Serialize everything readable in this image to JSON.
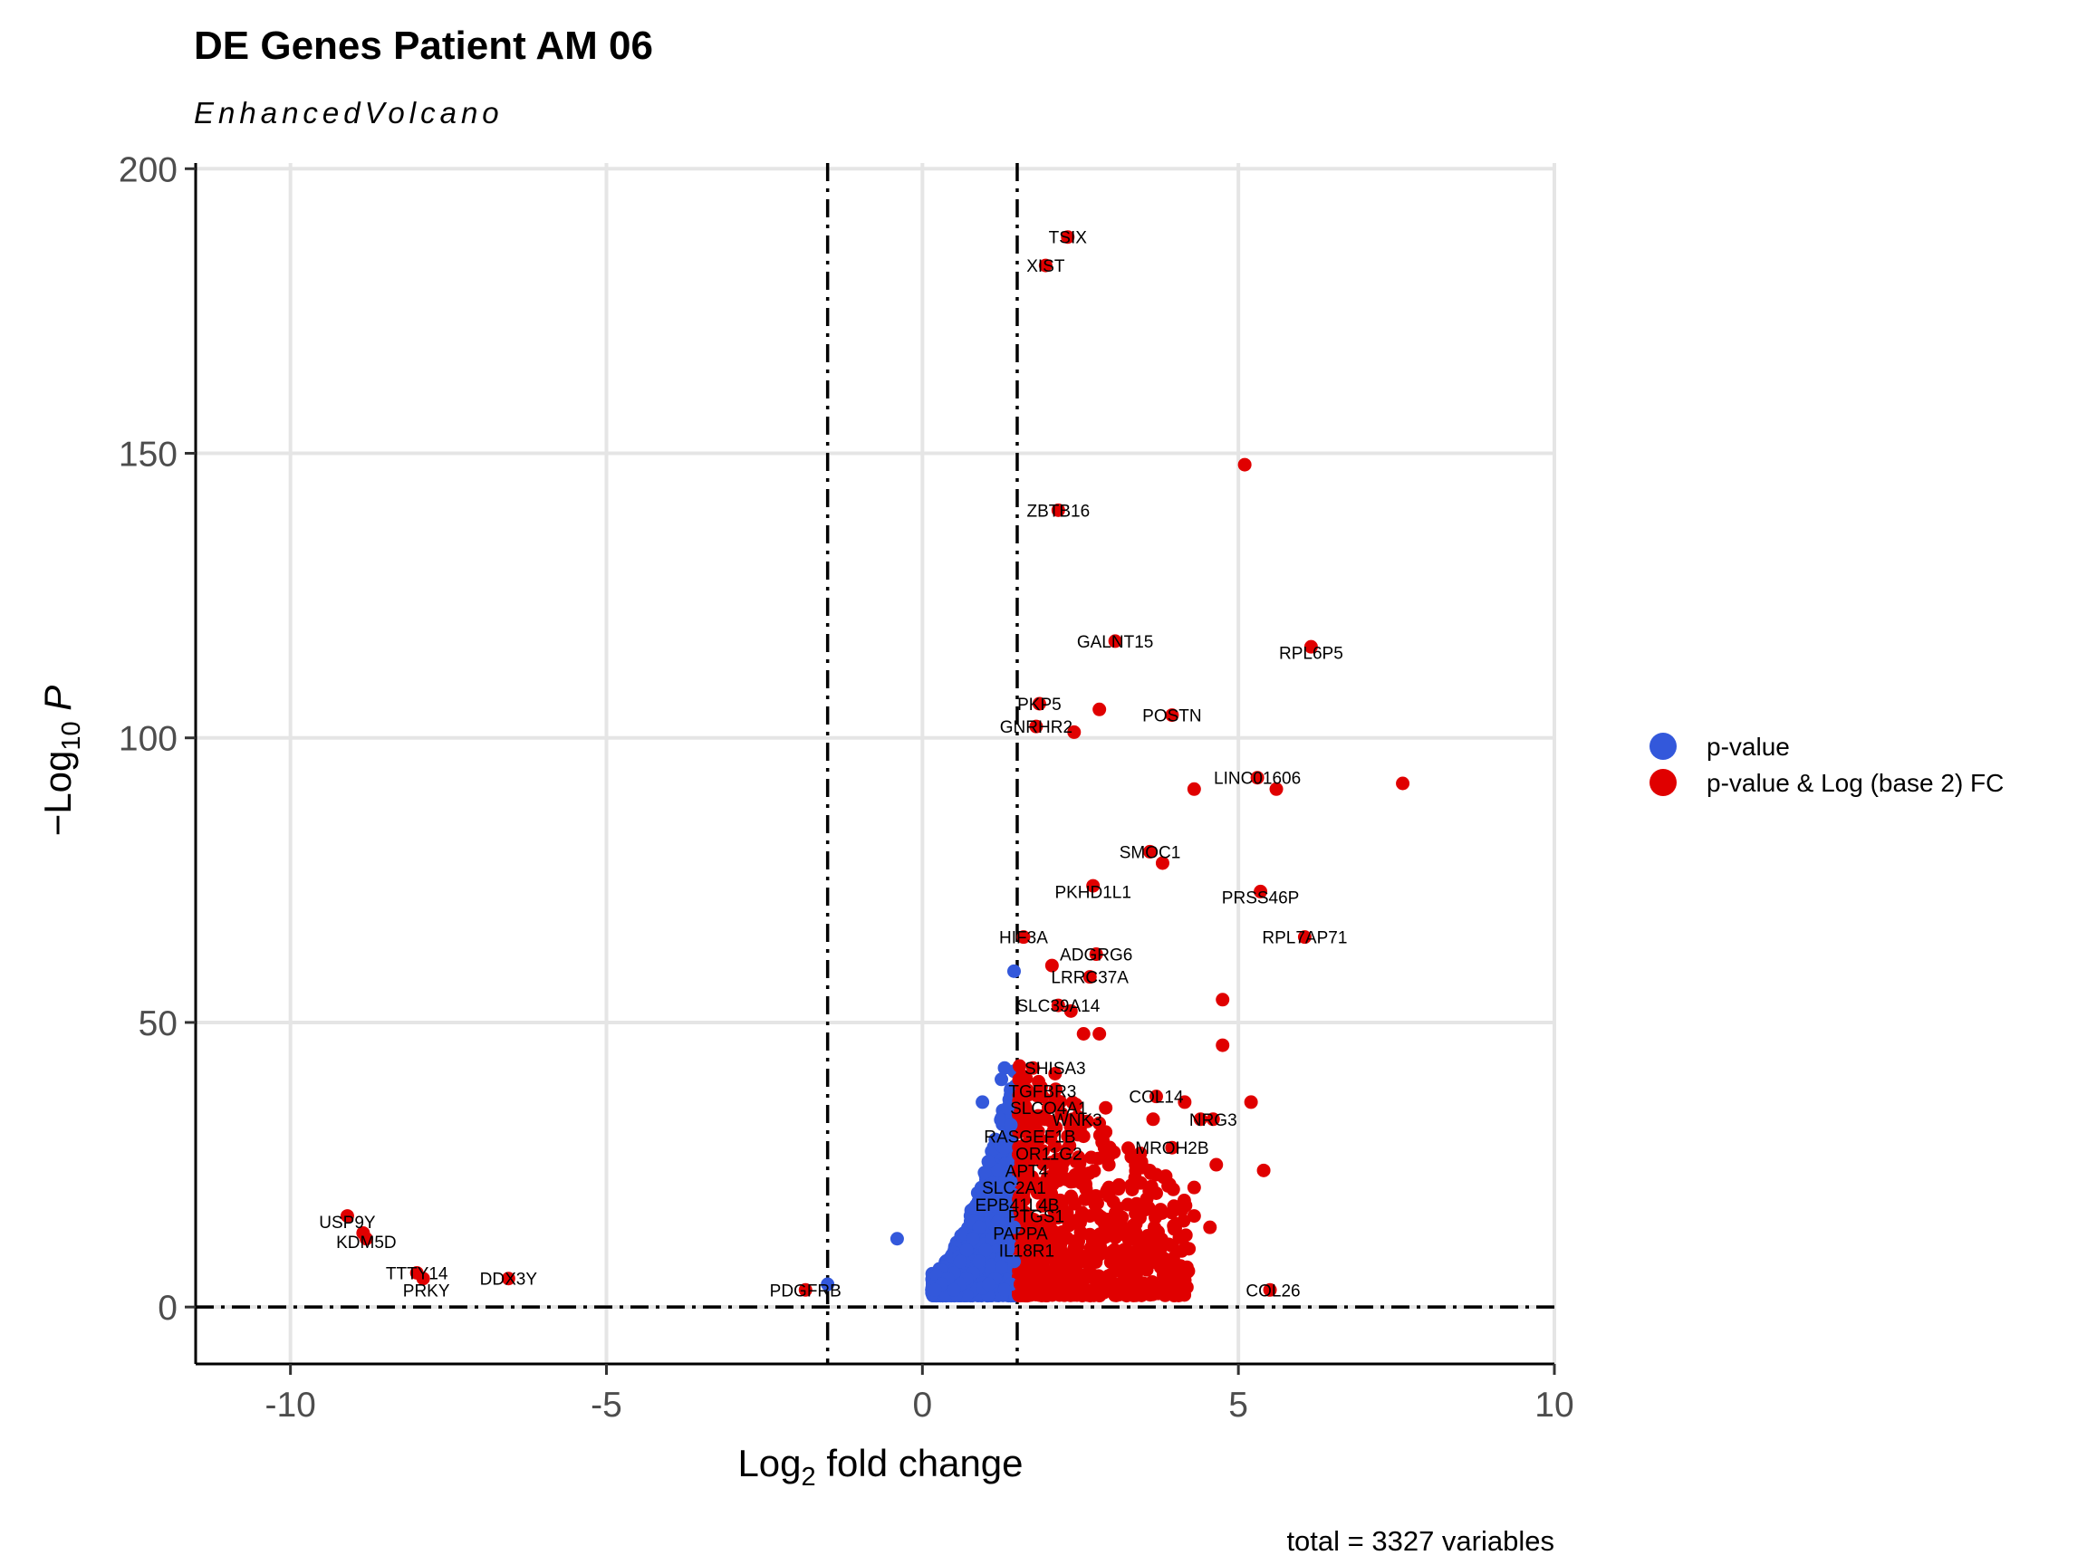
{
  "chart_data": {
    "type": "scatter",
    "title": "DE Genes Patient AM 06",
    "subtitle": "EnhancedVolcano",
    "xlabel": {
      "prefix": "Log",
      "sub": "2",
      "suffix": " fold change"
    },
    "ylabel": {
      "prefix": "−Log",
      "sub": "10",
      "suffix": " P"
    },
    "caption": "total = 3327 variables",
    "xlim": [
      -11.5,
      10
    ],
    "ylim": [
      -10,
      201
    ],
    "x_ticks": [
      -10,
      -5,
      0,
      5,
      10
    ],
    "x_tick_labels": [
      "-10",
      "-5",
      "0",
      "5",
      "10"
    ],
    "y_ticks": [
      0,
      50,
      100,
      150,
      200
    ],
    "y_tick_labels": [
      "0",
      "50",
      "100",
      "150",
      "200"
    ],
    "grid": true,
    "fc_cutoff": 1.5,
    "p_cutoff_line": 0,
    "legend_position": "right",
    "legend": [
      {
        "label": "p-value",
        "color": "#3358db"
      },
      {
        "label": "p-value & Log (base 2) FC",
        "color": "#e00000"
      }
    ],
    "series": [
      {
        "name": "p-value",
        "color": "#3358db",
        "points": [
          [
            1.45,
            59
          ],
          [
            1.25,
            40
          ],
          [
            1.3,
            42
          ],
          [
            1.35,
            35
          ],
          [
            0.95,
            36
          ],
          [
            1.4,
            32
          ],
          [
            1.3,
            28
          ],
          [
            1.2,
            24
          ],
          [
            1.1,
            20
          ],
          [
            1.0,
            17
          ],
          [
            0.9,
            14
          ],
          [
            0.8,
            12
          ],
          [
            0.7,
            10
          ],
          [
            0.6,
            8
          ],
          [
            0.5,
            6
          ],
          [
            0.4,
            5
          ],
          [
            0.3,
            4
          ],
          [
            0.2,
            3
          ],
          [
            1.4,
            22
          ],
          [
            1.3,
            18
          ],
          [
            1.2,
            15
          ],
          [
            1.1,
            12
          ],
          [
            1.0,
            10
          ],
          [
            0.9,
            8
          ],
          [
            0.8,
            6
          ],
          [
            0.7,
            5
          ],
          [
            0.6,
            4
          ],
          [
            0.5,
            3
          ],
          [
            1.45,
            14
          ],
          [
            1.45,
            8
          ],
          [
            1.35,
            10
          ],
          [
            1.25,
            7
          ],
          [
            1.15,
            5
          ],
          [
            1.05,
            4
          ],
          [
            1.4,
            4
          ],
          [
            1.3,
            3
          ],
          [
            -0.4,
            12
          ],
          [
            -1.5,
            4
          ]
        ]
      },
      {
        "name": "p-value & Log (base 2) FC",
        "color": "#e00000",
        "points": [
          [
            2.3,
            188
          ],
          [
            1.95,
            183
          ],
          [
            5.1,
            148
          ],
          [
            2.15,
            140
          ],
          [
            3.05,
            117
          ],
          [
            6.15,
            116
          ],
          [
            1.85,
            106
          ],
          [
            2.8,
            105
          ],
          [
            3.95,
            104
          ],
          [
            1.8,
            102
          ],
          [
            2.4,
            101
          ],
          [
            5.3,
            93
          ],
          [
            4.3,
            91
          ],
          [
            5.6,
            91
          ],
          [
            7.6,
            92
          ],
          [
            3.6,
            80
          ],
          [
            3.8,
            78
          ],
          [
            2.7,
            74
          ],
          [
            5.35,
            73
          ],
          [
            6.05,
            65
          ],
          [
            1.6,
            65
          ],
          [
            2.75,
            62
          ],
          [
            2.05,
            60
          ],
          [
            2.65,
            58
          ],
          [
            4.75,
            54
          ],
          [
            2.15,
            53
          ],
          [
            2.35,
            52
          ],
          [
            2.55,
            48
          ],
          [
            2.8,
            48
          ],
          [
            4.75,
            46
          ],
          [
            1.75,
            42
          ],
          [
            2.1,
            41
          ],
          [
            1.9,
            37
          ],
          [
            3.7,
            37
          ],
          [
            4.15,
            36
          ],
          [
            5.2,
            36
          ],
          [
            2.2,
            34
          ],
          [
            2.9,
            35
          ],
          [
            3.65,
            33
          ],
          [
            4.4,
            33
          ],
          [
            4.6,
            33
          ],
          [
            1.7,
            30
          ],
          [
            2.55,
            30
          ],
          [
            3.95,
            28
          ],
          [
            1.8,
            27
          ],
          [
            2.95,
            25
          ],
          [
            3.45,
            27
          ],
          [
            4.65,
            25
          ],
          [
            5.4,
            24
          ],
          [
            3.85,
            23
          ],
          [
            2.35,
            22
          ],
          [
            2.95,
            21
          ],
          [
            3.7,
            20
          ],
          [
            4.3,
            21
          ],
          [
            2.2,
            18
          ],
          [
            3.25,
            18
          ],
          [
            3.55,
            19
          ],
          [
            2.65,
            16
          ],
          [
            3.1,
            15
          ],
          [
            4.3,
            16
          ],
          [
            4.55,
            14
          ],
          [
            2.05,
            13
          ],
          [
            2.85,
            12
          ],
          [
            3.45,
            12
          ],
          [
            3.9,
            11
          ],
          [
            1.75,
            10
          ],
          [
            2.45,
            9
          ],
          [
            3.15,
            8
          ],
          [
            3.7,
            8
          ],
          [
            1.65,
            7
          ],
          [
            2.25,
            6
          ],
          [
            2.9,
            5
          ],
          [
            3.5,
            4
          ],
          [
            3.95,
            3
          ],
          [
            1.55,
            4
          ],
          [
            2.15,
            3
          ],
          [
            2.6,
            3
          ],
          [
            1.9,
            5
          ],
          [
            5.5,
            3
          ],
          [
            -9.1,
            16
          ],
          [
            -8.85,
            13
          ],
          [
            -8.8,
            12
          ],
          [
            -8.0,
            6
          ],
          [
            -7.9,
            5
          ],
          [
            -6.55,
            5
          ],
          [
            -1.85,
            3
          ]
        ]
      }
    ],
    "labels": [
      {
        "text": "TSIX",
        "x": 2.3,
        "y": 188
      },
      {
        "text": "XIST",
        "x": 1.95,
        "y": 183
      },
      {
        "text": "ZBTB16",
        "x": 2.15,
        "y": 140
      },
      {
        "text": "GALNT15",
        "x": 3.05,
        "y": 117
      },
      {
        "text": "RPL6P5",
        "x": 6.15,
        "y": 115
      },
      {
        "text": "PKP5",
        "x": 1.85,
        "y": 106
      },
      {
        "text": "POSTN",
        "x": 3.95,
        "y": 104
      },
      {
        "text": "GNRHR2",
        "x": 1.8,
        "y": 102
      },
      {
        "text": "LINC01606",
        "x": 5.3,
        "y": 93
      },
      {
        "text": "SMOC1",
        "x": 3.6,
        "y": 80
      },
      {
        "text": "PKHD1L1",
        "x": 2.7,
        "y": 73
      },
      {
        "text": "PRSS46P",
        "x": 5.35,
        "y": 72
      },
      {
        "text": "HIF3A",
        "x": 1.6,
        "y": 65
      },
      {
        "text": "RPL7AP71",
        "x": 6.05,
        "y": 65
      },
      {
        "text": "ADGRG6",
        "x": 2.75,
        "y": 62
      },
      {
        "text": "LRRC37A",
        "x": 2.65,
        "y": 58
      },
      {
        "text": "SLC39A14",
        "x": 2.15,
        "y": 53
      },
      {
        "text": "SHISA3",
        "x": 2.1,
        "y": 42
      },
      {
        "text": "TGFBR3",
        "x": 1.9,
        "y": 38
      },
      {
        "text": "COL14",
        "x": 3.7,
        "y": 37
      },
      {
        "text": "SLCO4A1",
        "x": 2.0,
        "y": 35
      },
      {
        "text": "WNK3",
        "x": 2.45,
        "y": 33
      },
      {
        "text": "NRG3",
        "x": 4.6,
        "y": 33
      },
      {
        "text": "RASGEF1B",
        "x": 1.7,
        "y": 30
      },
      {
        "text": "MROH2B",
        "x": 3.95,
        "y": 28
      },
      {
        "text": "OR11G2",
        "x": 2.0,
        "y": 27
      },
      {
        "text": "APT4",
        "x": 1.65,
        "y": 24
      },
      {
        "text": "SLC2A1",
        "x": 1.45,
        "y": 21
      },
      {
        "text": "EPB41L4B",
        "x": 1.5,
        "y": 18
      },
      {
        "text": "PTGS1",
        "x": 1.8,
        "y": 16
      },
      {
        "text": "PAPPA",
        "x": 1.55,
        "y": 13
      },
      {
        "text": "IL18R1",
        "x": 1.65,
        "y": 10
      },
      {
        "text": "USP9Y",
        "x": -9.1,
        "y": 15
      },
      {
        "text": "KDM5D",
        "x": -8.8,
        "y": 11.5
      },
      {
        "text": "TTTY14",
        "x": -8.0,
        "y": 6
      },
      {
        "text": "DDX3Y",
        "x": -6.55,
        "y": 5
      },
      {
        "text": "PRKY",
        "x": -7.85,
        "y": 3
      },
      {
        "text": "PDGFRB",
        "x": -1.85,
        "y": 3
      },
      {
        "text": "COL26",
        "x": 5.55,
        "y": 3
      }
    ]
  }
}
